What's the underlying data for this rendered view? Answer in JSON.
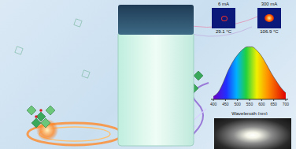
{
  "insets": [
    {
      "current": "6 mA",
      "temperature": "29.1 °C"
    },
    {
      "current": "300 mA",
      "temperature": "106.9 °C"
    }
  ],
  "chart_data": {
    "type": "area",
    "x": [
      400,
      420,
      440,
      460,
      480,
      500,
      520,
      540,
      560,
      580,
      600,
      620,
      640,
      660,
      680,
      700
    ],
    "values": [
      0.05,
      0.12,
      0.28,
      0.48,
      0.64,
      0.76,
      0.85,
      0.9,
      0.9,
      0.84,
      0.74,
      0.6,
      0.45,
      0.32,
      0.2,
      0.11
    ],
    "xlabel": "Wavelength (nm)",
    "xlim": [
      390,
      710
    ],
    "xticks": [
      400,
      450,
      500,
      550,
      600,
      650,
      700
    ],
    "ylim": [
      0,
      1
    ],
    "tick_labels": "x",
    "grid": false
  }
}
